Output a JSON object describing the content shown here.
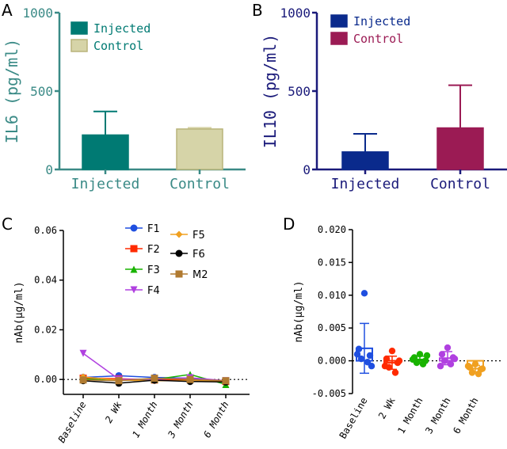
{
  "colors": {
    "teal": "#007a73",
    "teal_axis": "#3a8a86",
    "khaki": "#d6d4a8",
    "khaki_edge": "#b9b47a",
    "navy": "#0a2a8c",
    "navy_axis": "#1a1a7a",
    "crimson": "#9b1b54",
    "f1": "#1f4fe0",
    "f2": "#ff2a00",
    "f3": "#19b300",
    "f4": "#b040e0",
    "f5": "#f0a020",
    "f6": "#000000",
    "m2": "#b07a30"
  },
  "chart_data": [
    {
      "panel": "A",
      "type": "bar",
      "title": "",
      "xlabel": "",
      "ylabel": "IL6 (pg/ml)",
      "ylim": [
        0,
        1000
      ],
      "yticks": [
        "0",
        "500",
        "1000"
      ],
      "categories": [
        "Injected",
        "Control"
      ],
      "values": [
        220,
        258
      ],
      "errors": [
        150,
        8
      ],
      "legend": [
        "Injected",
        "Control"
      ],
      "legend_position": "top-left"
    },
    {
      "panel": "B",
      "type": "bar",
      "title": "",
      "xlabel": "",
      "ylabel": "IL10 (pg/ml)",
      "ylim": [
        0,
        1000
      ],
      "yticks": [
        "0",
        "500",
        "1000"
      ],
      "categories": [
        "Injected",
        "Control"
      ],
      "values": [
        112,
        265
      ],
      "errors": [
        115,
        272
      ],
      "legend": [
        "Injected",
        "Control"
      ],
      "legend_position": "top-left"
    },
    {
      "panel": "C",
      "type": "line",
      "title": "",
      "xlabel": "",
      "ylabel": "nAb(μg/ml)",
      "ylim": [
        -0.006,
        0.06
      ],
      "yticks": [
        "0.00",
        "0.02",
        "0.04",
        "0.06"
      ],
      "categories": [
        "Baseline",
        "2 Wk",
        "1 Month",
        "3 Month",
        "6 Month"
      ],
      "legend_position": "top-center",
      "series": [
        {
          "name": "F1",
          "values": [
            0.0008,
            0.0015,
            0.0008,
            0.0005,
            -0.001
          ]
        },
        {
          "name": "F2",
          "values": [
            0.0005,
            0.0003,
            -0.0002,
            0.0,
            -0.0008
          ]
        },
        {
          "name": "F3",
          "values": [
            0.0002,
            -0.0004,
            0.0,
            0.002,
            -0.002
          ]
        },
        {
          "name": "F4",
          "values": [
            0.0105,
            0.0001,
            0.0,
            0.0007,
            -0.0005
          ]
        },
        {
          "name": "F5",
          "values": [
            0.001,
            -0.0003,
            -0.0005,
            -0.0005,
            -0.0008
          ]
        },
        {
          "name": "F6",
          "values": [
            -0.0005,
            -0.0015,
            -0.0003,
            -0.0008,
            -0.001
          ]
        },
        {
          "name": "M2",
          "values": [
            -0.0002,
            -0.0005,
            0.0005,
            0.0,
            -0.0005
          ]
        }
      ]
    },
    {
      "panel": "D",
      "type": "scatter",
      "title": "",
      "xlabel": "",
      "ylabel": "nAb(μg/ml)",
      "ylim": [
        -0.005,
        0.02
      ],
      "yticks": [
        "-0.005",
        "0.000",
        "0.005",
        "0.010",
        "0.015",
        "0.020"
      ],
      "categories": [
        "Baseline",
        "2 Wk",
        "1 Month",
        "3 Month",
        "6 Month"
      ],
      "groups": [
        {
          "name": "Baseline",
          "points": [
            0.0103,
            0.0018,
            0.0008,
            0.0003,
            -0.0002,
            0.001,
            -0.0008
          ],
          "mean": 0.0019,
          "sd": 0.0038
        },
        {
          "name": "2 Wk",
          "points": [
            0.0015,
            0.0003,
            -0.0003,
            -0.001,
            -0.0018,
            -0.0008,
            0.0
          ],
          "mean": -0.0003,
          "sd": 0.001
        },
        {
          "name": "1 Month",
          "points": [
            0.001,
            0.0005,
            0.0,
            -0.0003,
            -0.0005,
            0.0002,
            0.0008
          ],
          "mean": 0.0002,
          "sd": 0.0005
        },
        {
          "name": "3 Month",
          "points": [
            0.002,
            0.001,
            0.0005,
            0.0,
            -0.0005,
            -0.0008,
            0.0003
          ],
          "mean": 0.0004,
          "sd": 0.001
        },
        {
          "name": "6 Month",
          "points": [
            -0.0005,
            -0.001,
            -0.0013,
            -0.0018,
            -0.002,
            -0.0008,
            -0.0012
          ],
          "mean": -0.0012,
          "sd": 0.0005
        }
      ]
    }
  ]
}
